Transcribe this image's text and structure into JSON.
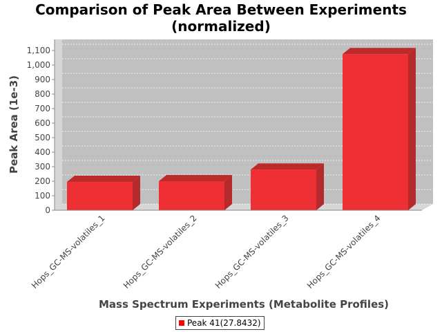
{
  "chart_data": {
    "type": "bar",
    "title": "Comparison of Peak Area Between Experiments\n(normalized)",
    "title_lines": [
      "Comparison of Peak Area Between Experiments",
      "(normalized)"
    ],
    "xlabel": "Mass Spectrum Experiments (Metabolite Profiles)",
    "ylabel": "Peak Area (1e-3)",
    "categories": [
      "Hops_GC-MS-volatiles_1",
      "Hops_GC-MS-volatiles_2",
      "Hops_GC-MS-volatiles_3",
      "Hops_GC-MS-volatiles_4"
    ],
    "series": [
      {
        "name": "Peak 41(27.8432)",
        "values": [
          195,
          200,
          280,
          1075
        ]
      }
    ],
    "ylim": [
      0,
      1100
    ],
    "yticks": [
      0,
      100,
      200,
      300,
      400,
      500,
      600,
      700,
      800,
      900,
      1000,
      1100
    ],
    "ytick_labels": [
      "0",
      "100",
      "200",
      "300",
      "400",
      "500",
      "600",
      "700",
      "800",
      "900",
      "1,000",
      "1,100"
    ],
    "grid": true,
    "style": "3d",
    "legend_position": "bottom",
    "colors": {
      "bar_front": "#ee2f33",
      "bar_top": "#bd2a2c",
      "bar_side": "#b52a2c",
      "plot_background": "#c0c0c0",
      "grid": "#ffffff"
    }
  }
}
